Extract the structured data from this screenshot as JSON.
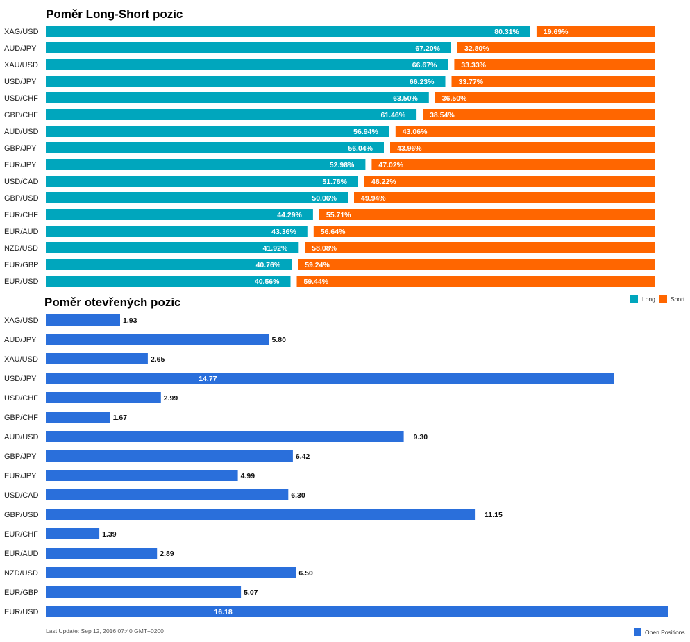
{
  "colors": {
    "long": "#00a6bd",
    "short": "#ff6600",
    "open": "#2a6fdb"
  },
  "chart_data": [
    {
      "type": "bar",
      "orientation": "horizontal-stacked",
      "title": "Poměr Long-Short pozic",
      "categories": [
        "XAG/USD",
        "AUD/JPY",
        "XAU/USD",
        "USD/JPY",
        "USD/CHF",
        "GBP/CHF",
        "AUD/USD",
        "GBP/JPY",
        "EUR/JPY",
        "USD/CAD",
        "GBP/USD",
        "EUR/CHF",
        "EUR/AUD",
        "NZD/USD",
        "EUR/GBP",
        "EUR/USD"
      ],
      "series": [
        {
          "name": "Long",
          "values": [
            80.31,
            67.2,
            66.67,
            66.23,
            63.5,
            61.46,
            56.94,
            56.04,
            52.98,
            51.78,
            50.06,
            44.29,
            43.36,
            41.92,
            40.76,
            40.56
          ],
          "labels": [
            "80.31%",
            "67.20%",
            "66.67%",
            "66.23%",
            "63.50%",
            "61.46%",
            "56.94%",
            "56.04%",
            "52.98%",
            "51.78%",
            "50.06%",
            "44.29%",
            "43.36%",
            "41.92%",
            "40.76%",
            "40.56%"
          ]
        },
        {
          "name": "Short",
          "values": [
            19.69,
            32.8,
            33.33,
            33.77,
            36.5,
            38.54,
            43.06,
            43.96,
            47.02,
            48.22,
            49.94,
            55.71,
            56.64,
            58.08,
            59.24,
            59.44
          ],
          "labels": [
            "19.69%",
            "32.80%",
            "33.33%",
            "33.77%",
            "36.50%",
            "38.54%",
            "43.06%",
            "43.96%",
            "47.02%",
            "48.22%",
            "49.94%",
            "55.71%",
            "56.64%",
            "58.08%",
            "59.24%",
            "59.44%"
          ]
        }
      ],
      "legend_position": "bottom-right"
    },
    {
      "type": "bar",
      "orientation": "horizontal",
      "title": "Poměr otevřených pozic",
      "categories": [
        "XAG/USD",
        "AUD/JPY",
        "XAU/USD",
        "USD/JPY",
        "USD/CHF",
        "GBP/CHF",
        "AUD/USD",
        "GBP/JPY",
        "EUR/JPY",
        "USD/CAD",
        "GBP/USD",
        "EUR/CHF",
        "EUR/AUD",
        "NZD/USD",
        "EUR/GBP",
        "EUR/USD"
      ],
      "series": [
        {
          "name": "Open Positions",
          "values": [
            1.93,
            5.8,
            2.65,
            14.77,
            2.99,
            1.67,
            9.3,
            6.42,
            4.99,
            6.3,
            11.15,
            1.39,
            2.89,
            6.5,
            5.07,
            16.18
          ],
          "labels": [
            "1.93",
            "5.80",
            "2.65",
            "14.77",
            "2.99",
            "1.67",
            "9.30",
            "6.42",
            "4.99",
            "6.30",
            "11.15",
            "1.39",
            "2.89",
            "6.50",
            "5.07",
            "16.18"
          ]
        }
      ],
      "legend_position": "bottom-right"
    }
  ],
  "footer": {
    "last_update": "Last Update: Sep 12, 2016 07:40 GMT+0200"
  }
}
